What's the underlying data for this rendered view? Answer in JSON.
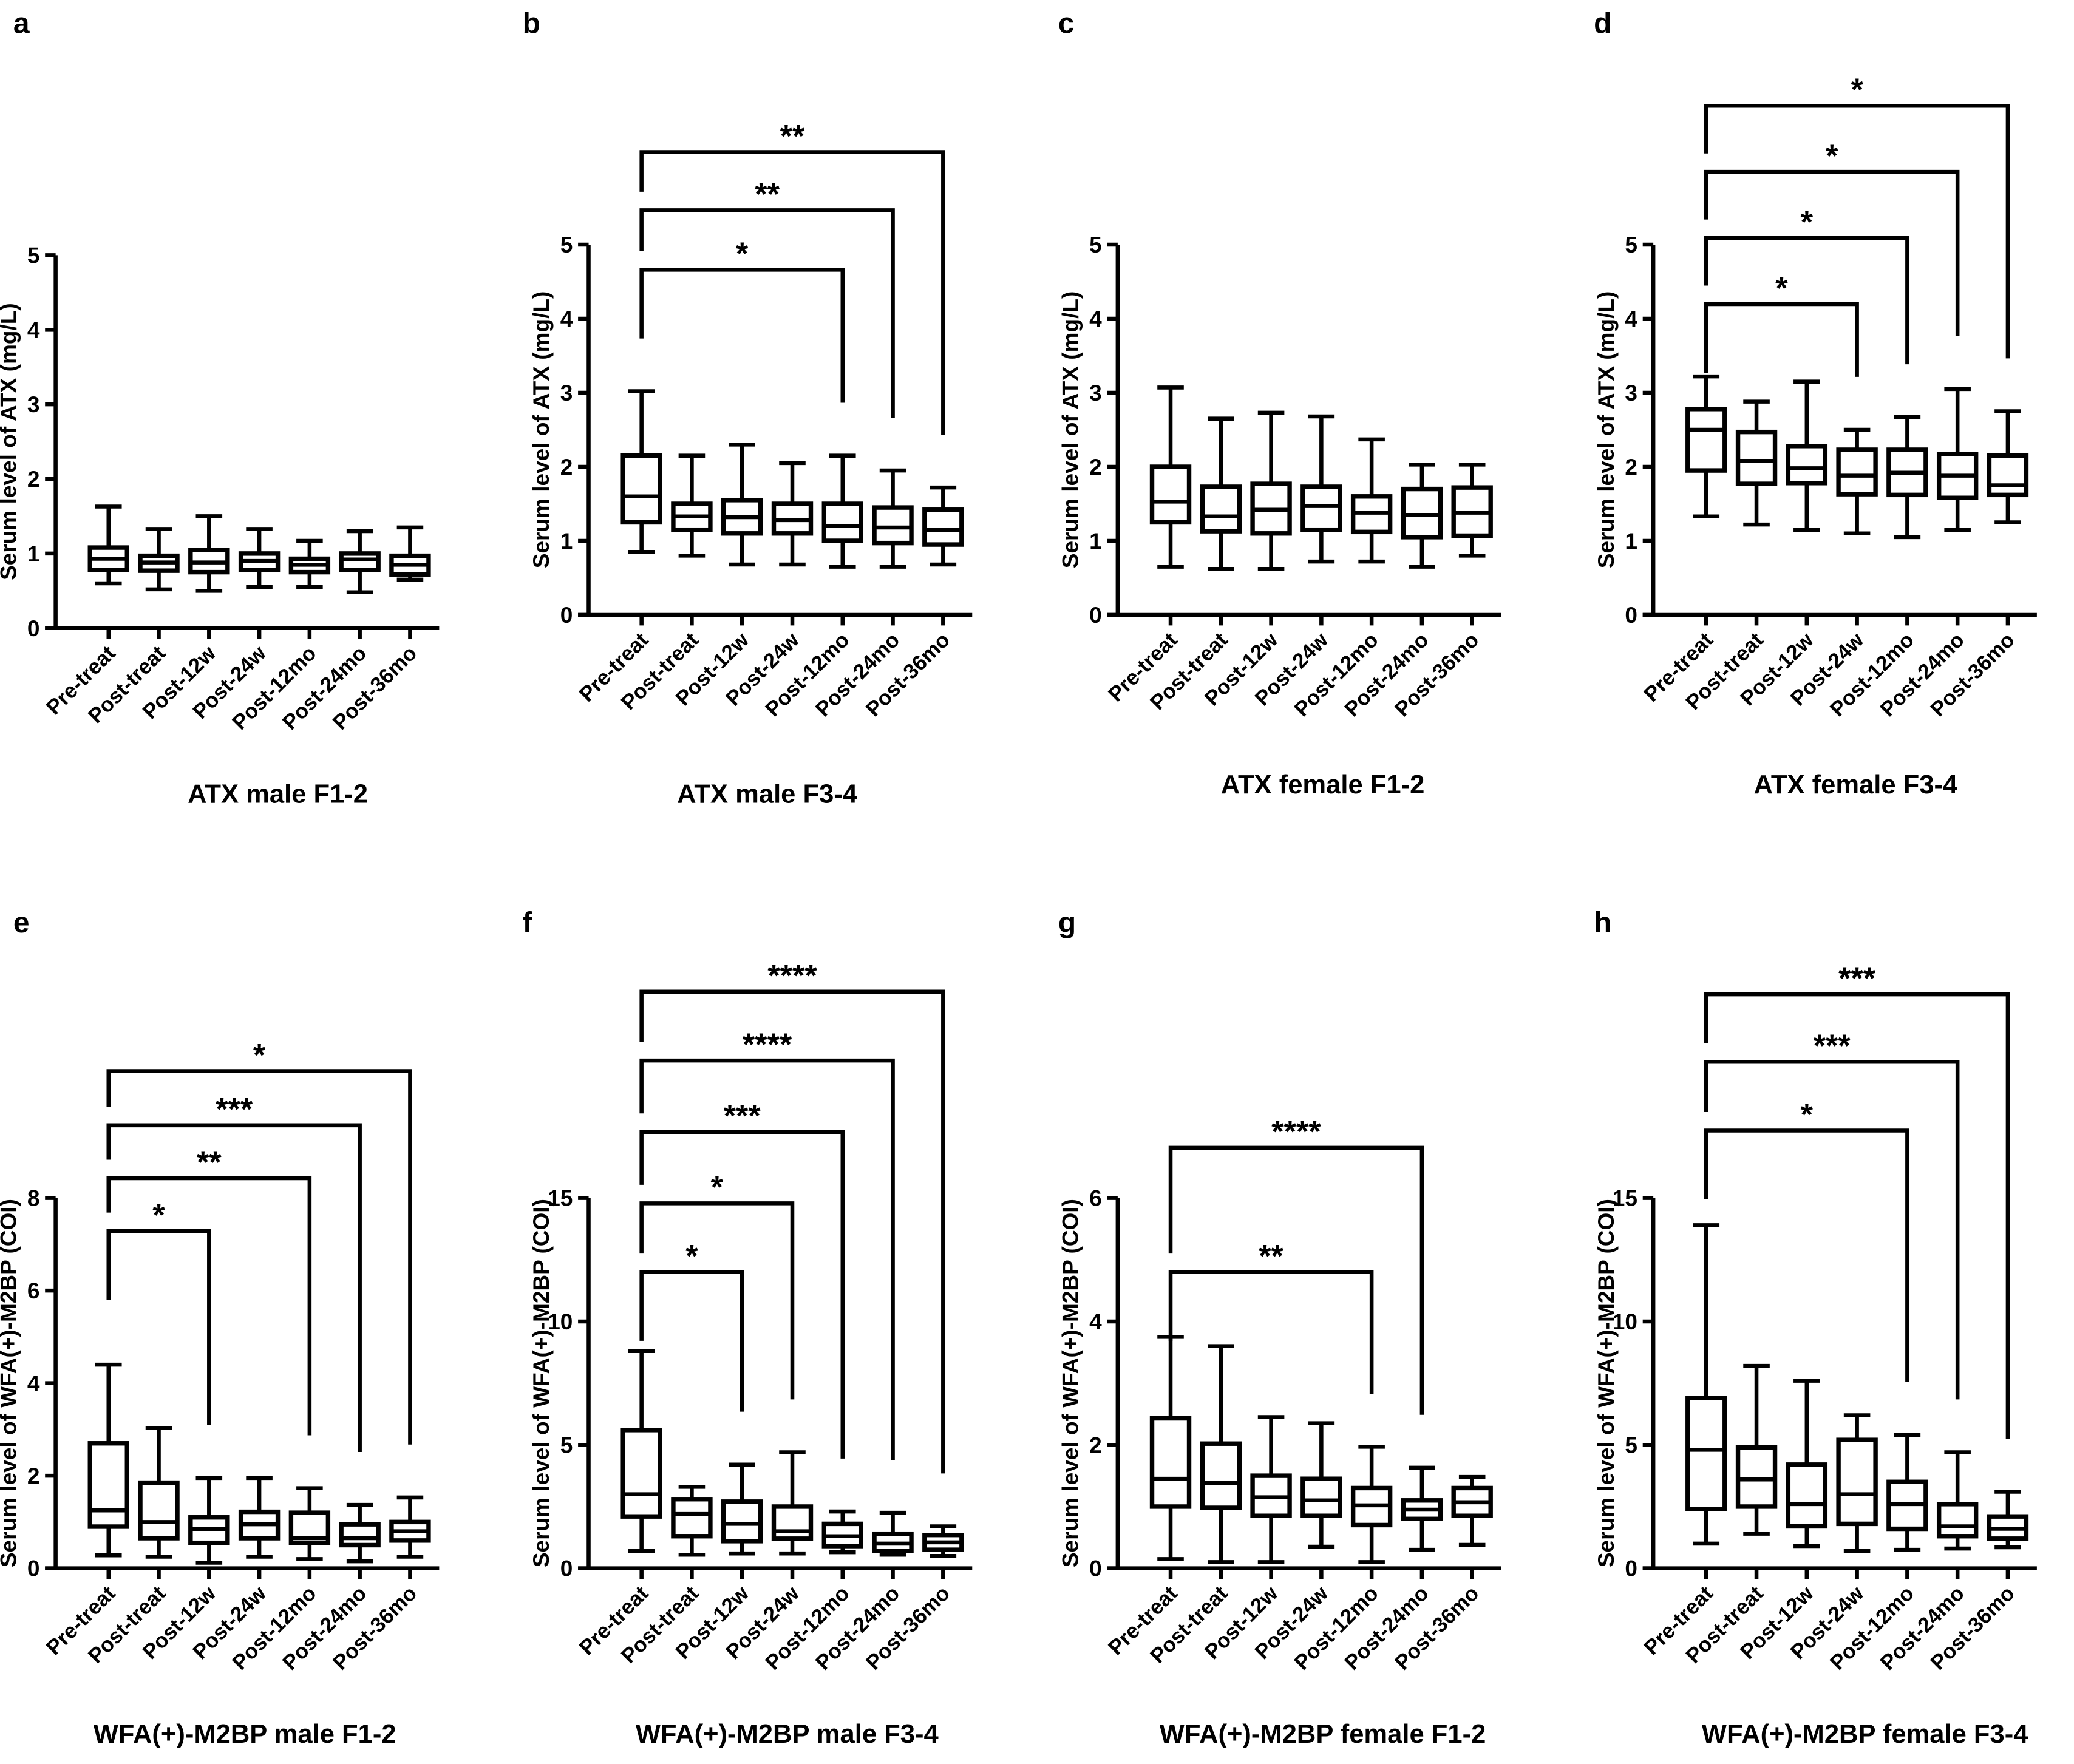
{
  "chart_data": [
    {
      "type": "box",
      "panel": "a",
      "title": "ATX male F1-2",
      "ylabel": "Serum level of ATX (mg/L)",
      "ylim": [
        0,
        5
      ],
      "yticks": [
        0,
        1,
        2,
        3,
        4,
        5
      ],
      "categories": [
        "Pre-treat",
        "Post-treat",
        "Post-12w",
        "Post-24w",
        "Post-12mo",
        "Post-24mo",
        "Post-36mo"
      ],
      "boxes": [
        {
          "min": 0.6,
          "q1": 0.78,
          "median": 0.93,
          "q3": 1.08,
          "max": 1.63
        },
        {
          "min": 0.52,
          "q1": 0.77,
          "median": 0.88,
          "q3": 0.97,
          "max": 1.33
        },
        {
          "min": 0.5,
          "q1": 0.75,
          "median": 0.88,
          "q3": 1.05,
          "max": 1.5
        },
        {
          "min": 0.55,
          "q1": 0.78,
          "median": 0.9,
          "q3": 1.0,
          "max": 1.33
        },
        {
          "min": 0.55,
          "q1": 0.75,
          "median": 0.85,
          "q3": 0.93,
          "max": 1.17
        },
        {
          "min": 0.48,
          "q1": 0.78,
          "median": 0.92,
          "q3": 1.0,
          "max": 1.3
        },
        {
          "min": 0.65,
          "q1": 0.72,
          "median": 0.85,
          "q3": 0.97,
          "max": 1.35
        }
      ],
      "comparisons": []
    },
    {
      "type": "box",
      "panel": "b",
      "title": "ATX male F3-4",
      "ylabel": "Serum level of ATX (mg/L)",
      "ylim": [
        0,
        5
      ],
      "yticks": [
        0,
        1,
        2,
        3,
        4,
        5
      ],
      "categories": [
        "Pre-treat",
        "Post-treat",
        "Post-12w",
        "Post-24w",
        "Post-12mo",
        "Post-24mo",
        "Post-36mo"
      ],
      "boxes": [
        {
          "min": 0.85,
          "q1": 1.25,
          "median": 1.6,
          "q3": 2.15,
          "max": 3.02
        },
        {
          "min": 0.8,
          "q1": 1.15,
          "median": 1.33,
          "q3": 1.5,
          "max": 2.15
        },
        {
          "min": 0.68,
          "q1": 1.1,
          "median": 1.32,
          "q3": 1.55,
          "max": 2.3
        },
        {
          "min": 0.68,
          "q1": 1.1,
          "median": 1.28,
          "q3": 1.5,
          "max": 2.05
        },
        {
          "min": 0.65,
          "q1": 1.0,
          "median": 1.2,
          "q3": 1.5,
          "max": 2.15
        },
        {
          "min": 0.65,
          "q1": 0.97,
          "median": 1.18,
          "q3": 1.45,
          "max": 1.95
        },
        {
          "min": 0.68,
          "q1": 0.95,
          "median": 1.15,
          "q3": 1.42,
          "max": 1.72
        }
      ],
      "comparisons": [
        {
          "from": "Pre-treat",
          "to": "Post-12mo",
          "label": "*"
        },
        {
          "from": "Pre-treat",
          "to": "Post-24mo",
          "label": "**"
        },
        {
          "from": "Pre-treat",
          "to": "Post-36mo",
          "label": "**"
        }
      ]
    },
    {
      "type": "box",
      "panel": "c",
      "title": "ATX female F1-2",
      "ylabel": "Serum level of ATX (mg/L)",
      "ylim": [
        0,
        5
      ],
      "yticks": [
        0,
        1,
        2,
        3,
        4,
        5
      ],
      "categories": [
        "Pre-treat",
        "Post-treat",
        "Post-12w",
        "Post-24w",
        "Post-12mo",
        "Post-24mo",
        "Post-36mo"
      ],
      "boxes": [
        {
          "min": 0.65,
          "q1": 1.25,
          "median": 1.53,
          "q3": 2.0,
          "max": 3.07
        },
        {
          "min": 0.62,
          "q1": 1.13,
          "median": 1.33,
          "q3": 1.73,
          "max": 2.65
        },
        {
          "min": 0.62,
          "q1": 1.1,
          "median": 1.42,
          "q3": 1.77,
          "max": 2.73
        },
        {
          "min": 0.72,
          "q1": 1.15,
          "median": 1.47,
          "q3": 1.73,
          "max": 2.68
        },
        {
          "min": 0.72,
          "q1": 1.12,
          "median": 1.38,
          "q3": 1.6,
          "max": 2.37
        },
        {
          "min": 0.65,
          "q1": 1.05,
          "median": 1.35,
          "q3": 1.7,
          "max": 2.03
        },
        {
          "min": 0.8,
          "q1": 1.07,
          "median": 1.38,
          "q3": 1.72,
          "max": 2.03
        }
      ],
      "comparisons": []
    },
    {
      "type": "box",
      "panel": "d",
      "title": "ATX female F3-4",
      "ylabel": "Serum level of ATX (mg/L)",
      "ylim": [
        0,
        5
      ],
      "yticks": [
        0,
        1,
        2,
        3,
        4,
        5
      ],
      "categories": [
        "Pre-treat",
        "Post-treat",
        "Post-12w",
        "Post-24w",
        "Post-12mo",
        "Post-24mo",
        "Post-36mo"
      ],
      "boxes": [
        {
          "min": 1.33,
          "q1": 1.95,
          "median": 2.5,
          "q3": 2.78,
          "max": 3.22
        },
        {
          "min": 1.22,
          "q1": 1.77,
          "median": 2.08,
          "q3": 2.47,
          "max": 2.88
        },
        {
          "min": 1.15,
          "q1": 1.78,
          "median": 1.98,
          "q3": 2.28,
          "max": 3.15
        },
        {
          "min": 1.1,
          "q1": 1.63,
          "median": 1.88,
          "q3": 2.23,
          "max": 2.5
        },
        {
          "min": 1.05,
          "q1": 1.62,
          "median": 1.92,
          "q3": 2.23,
          "max": 2.67
        },
        {
          "min": 1.15,
          "q1": 1.58,
          "median": 1.88,
          "q3": 2.17,
          "max": 3.05
        },
        {
          "min": 1.25,
          "q1": 1.62,
          "median": 1.75,
          "q3": 2.15,
          "max": 2.75
        }
      ],
      "comparisons": [
        {
          "from": "Pre-treat",
          "to": "Post-24w",
          "label": "*"
        },
        {
          "from": "Pre-treat",
          "to": "Post-12mo",
          "label": "*"
        },
        {
          "from": "Pre-treat",
          "to": "Post-24mo",
          "label": "*"
        },
        {
          "from": "Pre-treat",
          "to": "Post-36mo",
          "label": "*"
        }
      ]
    },
    {
      "type": "box",
      "panel": "e",
      "title": "WFA(+)-M2BP male F1-2",
      "ylabel": "Serum level of WFA(+)-M2BP (COI)",
      "ylim": [
        0,
        8
      ],
      "yticks": [
        0,
        2,
        4,
        6,
        8
      ],
      "categories": [
        "Pre-treat",
        "Post-treat",
        "Post-12w",
        "Post-24w",
        "Post-12mo",
        "Post-24mo",
        "Post-36mo"
      ],
      "boxes": [
        {
          "min": 0.28,
          "q1": 0.9,
          "median": 1.25,
          "q3": 2.7,
          "max": 4.4
        },
        {
          "min": 0.25,
          "q1": 0.65,
          "median": 1.0,
          "q3": 1.85,
          "max": 3.03
        },
        {
          "min": 0.12,
          "q1": 0.55,
          "median": 0.85,
          "q3": 1.1,
          "max": 1.95
        },
        {
          "min": 0.25,
          "q1": 0.65,
          "median": 0.95,
          "q3": 1.22,
          "max": 1.95
        },
        {
          "min": 0.2,
          "q1": 0.55,
          "median": 0.65,
          "q3": 1.2,
          "max": 1.73
        },
        {
          "min": 0.15,
          "q1": 0.5,
          "median": 0.65,
          "q3": 0.95,
          "max": 1.37
        },
        {
          "min": 0.25,
          "q1": 0.6,
          "median": 0.8,
          "q3": 1.0,
          "max": 1.53
        }
      ],
      "comparisons": [
        {
          "from": "Pre-treat",
          "to": "Post-12w",
          "label": "*"
        },
        {
          "from": "Pre-treat",
          "to": "Post-12mo",
          "label": "**"
        },
        {
          "from": "Pre-treat",
          "to": "Post-24mo",
          "label": "***"
        },
        {
          "from": "Pre-treat",
          "to": "Post-36mo",
          "label": "*"
        }
      ]
    },
    {
      "type": "box",
      "panel": "f",
      "title": "WFA(+)-M2BP male F3-4",
      "ylabel": "Serum level of WFA(+)-M2BP (COI)",
      "ylim": [
        0,
        15
      ],
      "yticks": [
        0,
        5,
        10,
        15
      ],
      "categories": [
        "Pre-treat",
        "Post-treat",
        "Post-12w",
        "Post-24w",
        "Post-12mo",
        "Post-24mo",
        "Post-36mo"
      ],
      "boxes": [
        {
          "min": 0.7,
          "q1": 2.1,
          "median": 3.0,
          "q3": 5.6,
          "max": 8.8
        },
        {
          "min": 0.55,
          "q1": 1.3,
          "median": 2.2,
          "q3": 2.8,
          "max": 3.3
        },
        {
          "min": 0.6,
          "q1": 1.1,
          "median": 1.8,
          "q3": 2.7,
          "max": 4.2
        },
        {
          "min": 0.6,
          "q1": 1.2,
          "median": 1.5,
          "q3": 2.5,
          "max": 4.7
        },
        {
          "min": 0.65,
          "q1": 0.9,
          "median": 1.3,
          "q3": 1.8,
          "max": 2.3
        },
        {
          "min": 0.55,
          "q1": 0.7,
          "median": 1.0,
          "q3": 1.4,
          "max": 2.25
        },
        {
          "min": 0.5,
          "q1": 0.75,
          "median": 1.05,
          "q3": 1.35,
          "max": 1.7
        }
      ],
      "comparisons": [
        {
          "from": "Pre-treat",
          "to": "Post-12w",
          "label": "*"
        },
        {
          "from": "Pre-treat",
          "to": "Post-24w",
          "label": "*"
        },
        {
          "from": "Pre-treat",
          "to": "Post-12mo",
          "label": "***"
        },
        {
          "from": "Pre-treat",
          "to": "Post-24mo",
          "label": "****"
        },
        {
          "from": "Pre-treat",
          "to": "Post-36mo",
          "label": "****"
        }
      ]
    },
    {
      "type": "box",
      "panel": "g",
      "title": "WFA(+)-M2BP female F1-2",
      "ylabel": "Serum level of WFA(+)-M2BP (COI)",
      "ylim": [
        0,
        6
      ],
      "yticks": [
        0,
        2,
        4,
        6
      ],
      "categories": [
        "Pre-treat",
        "Post-treat",
        "Post-12w",
        "Post-24w",
        "Post-12mo",
        "Post-24mo",
        "Post-36mo"
      ],
      "boxes": [
        {
          "min": 0.15,
          "q1": 1.0,
          "median": 1.45,
          "q3": 2.43,
          "max": 3.75
        },
        {
          "min": 0.1,
          "q1": 0.98,
          "median": 1.38,
          "q3": 2.02,
          "max": 3.6
        },
        {
          "min": 0.1,
          "q1": 0.85,
          "median": 1.15,
          "q3": 1.5,
          "max": 2.45
        },
        {
          "min": 0.35,
          "q1": 0.85,
          "median": 1.1,
          "q3": 1.45,
          "max": 2.35
        },
        {
          "min": 0.1,
          "q1": 0.7,
          "median": 1.02,
          "q3": 1.3,
          "max": 1.97
        },
        {
          "min": 0.3,
          "q1": 0.8,
          "median": 0.95,
          "q3": 1.1,
          "max": 1.63
        },
        {
          "min": 0.38,
          "q1": 0.85,
          "median": 1.07,
          "q3": 1.3,
          "max": 1.48
        }
      ],
      "comparisons": [
        {
          "from": "Pre-treat",
          "to": "Post-12mo",
          "label": "**"
        },
        {
          "from": "Pre-treat",
          "to": "Post-24mo",
          "label": "****"
        }
      ]
    },
    {
      "type": "box",
      "panel": "h",
      "title": "WFA(+)-M2BP female F3-4",
      "ylabel": "Serum level of WFA(+)-M2BP (COI)",
      "ylim": [
        0,
        15
      ],
      "yticks": [
        0,
        5,
        10,
        15
      ],
      "categories": [
        "Pre-treat",
        "Post-treat",
        "Post-12w",
        "Post-24w",
        "Post-12mo",
        "Post-24mo",
        "Post-36mo"
      ],
      "boxes": [
        {
          "min": 1.0,
          "q1": 2.4,
          "median": 4.8,
          "q3": 6.9,
          "max": 13.9
        },
        {
          "min": 1.4,
          "q1": 2.5,
          "median": 3.6,
          "q3": 4.9,
          "max": 8.2
        },
        {
          "min": 0.9,
          "q1": 1.7,
          "median": 2.6,
          "q3": 4.2,
          "max": 7.6
        },
        {
          "min": 0.7,
          "q1": 1.8,
          "median": 3.0,
          "q3": 5.2,
          "max": 6.2
        },
        {
          "min": 0.75,
          "q1": 1.6,
          "median": 2.6,
          "q3": 3.5,
          "max": 5.4
        },
        {
          "min": 0.8,
          "q1": 1.3,
          "median": 1.7,
          "q3": 2.6,
          "max": 4.7
        },
        {
          "min": 0.85,
          "q1": 1.2,
          "median": 1.6,
          "q3": 2.1,
          "max": 3.1
        }
      ],
      "comparisons": [
        {
          "from": "Pre-treat",
          "to": "Post-12mo",
          "label": "*"
        },
        {
          "from": "Pre-treat",
          "to": "Post-24mo",
          "label": "***"
        },
        {
          "from": "Pre-treat",
          "to": "Post-36mo",
          "label": "***"
        }
      ]
    }
  ]
}
